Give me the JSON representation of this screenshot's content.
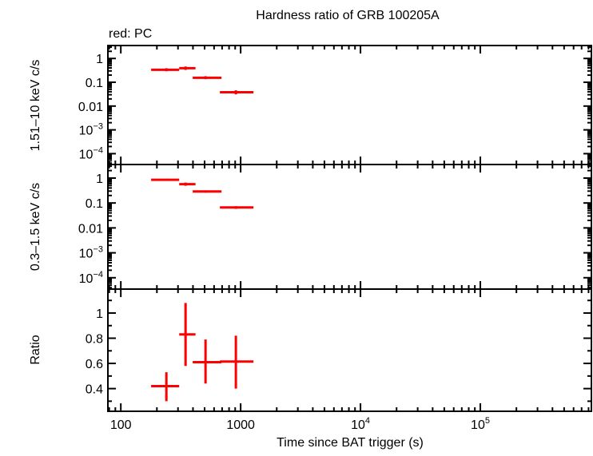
{
  "chart_data": {
    "type": "scatter",
    "title": "Hardness ratio of GRB 100205A",
    "subtitle": "red: PC",
    "xlabel": "Time since BAT trigger (s)",
    "xscale": "log",
    "xlim": [
      78,
      845000
    ],
    "x_ticks": [
      {
        "value": 100,
        "label": "100",
        "sup": ""
      },
      {
        "value": 1000,
        "label": "1000",
        "sup": ""
      },
      {
        "value": 10000,
        "label": "10",
        "sup": "4"
      },
      {
        "value": 100000,
        "label": "10",
        "sup": "5"
      }
    ],
    "series_color": "#ff0000",
    "panels": [
      {
        "ylabel": "1.51–10 keV c/s",
        "yscale": "log",
        "ylim": [
          3.5e-05,
          3.5
        ],
        "y_ticks": [
          {
            "value": 1,
            "label": "1",
            "sup": ""
          },
          {
            "value": 0.1,
            "label": "0.1",
            "sup": ""
          },
          {
            "value": 0.01,
            "label": "0.01",
            "sup": ""
          },
          {
            "value": 0.001,
            "label": "10",
            "sup": "−3"
          },
          {
            "value": 0.0001,
            "label": "10",
            "sup": "−4"
          }
        ],
        "points": [
          {
            "x": 240,
            "xlo": 179,
            "xhi": 307,
            "y": 0.335,
            "ylo": 0.29,
            "yhi": 0.39
          },
          {
            "x": 347,
            "xlo": 307,
            "xhi": 420,
            "y": 0.39,
            "ylo": 0.33,
            "yhi": 0.46
          },
          {
            "x": 509,
            "xlo": 398,
            "xhi": 692,
            "y": 0.155,
            "ylo": 0.135,
            "yhi": 0.18
          },
          {
            "x": 912,
            "xlo": 671,
            "xhi": 1279,
            "y": 0.038,
            "ylo": 0.031,
            "yhi": 0.046
          }
        ]
      },
      {
        "ylabel": "0.3–1.5 keV c/s",
        "yscale": "log",
        "ylim": [
          3.5e-05,
          3.5
        ],
        "y_ticks": [
          {
            "value": 1,
            "label": "1",
            "sup": ""
          },
          {
            "value": 0.1,
            "label": "0.1",
            "sup": ""
          },
          {
            "value": 0.01,
            "label": "0.01",
            "sup": ""
          },
          {
            "value": 0.001,
            "label": "10",
            "sup": "−3"
          },
          {
            "value": 0.0001,
            "label": "10",
            "sup": "−4"
          }
        ],
        "points": [
          {
            "x": 240,
            "xlo": 179,
            "xhi": 307,
            "y": 0.85,
            "ylo": 0.77,
            "yhi": 0.94
          },
          {
            "x": 347,
            "xlo": 307,
            "xhi": 420,
            "y": 0.57,
            "ylo": 0.49,
            "yhi": 0.66
          },
          {
            "x": 509,
            "xlo": 398,
            "xhi": 692,
            "y": 0.29,
            "ylo": 0.26,
            "yhi": 0.32
          },
          {
            "x": 912,
            "xlo": 671,
            "xhi": 1279,
            "y": 0.066,
            "ylo": 0.058,
            "yhi": 0.074
          }
        ]
      },
      {
        "ylabel": "Ratio",
        "yscale": "linear",
        "ylim": [
          0.22,
          1.19
        ],
        "y_ticks": [
          {
            "value": 1,
            "label": "1",
            "sup": ""
          },
          {
            "value": 0.8,
            "label": "0.8",
            "sup": ""
          },
          {
            "value": 0.6,
            "label": "0.6",
            "sup": ""
          },
          {
            "value": 0.4,
            "label": "0.4",
            "sup": ""
          }
        ],
        "points": [
          {
            "x": 240,
            "xlo": 179,
            "xhi": 307,
            "y": 0.42,
            "ylo": 0.3,
            "yhi": 0.53
          },
          {
            "x": 347,
            "xlo": 307,
            "xhi": 420,
            "y": 0.83,
            "ylo": 0.58,
            "yhi": 1.08
          },
          {
            "x": 509,
            "xlo": 398,
            "xhi": 692,
            "y": 0.61,
            "ylo": 0.44,
            "yhi": 0.79
          },
          {
            "x": 912,
            "xlo": 671,
            "xhi": 1279,
            "y": 0.615,
            "ylo": 0.4,
            "yhi": 0.82
          }
        ]
      }
    ]
  }
}
